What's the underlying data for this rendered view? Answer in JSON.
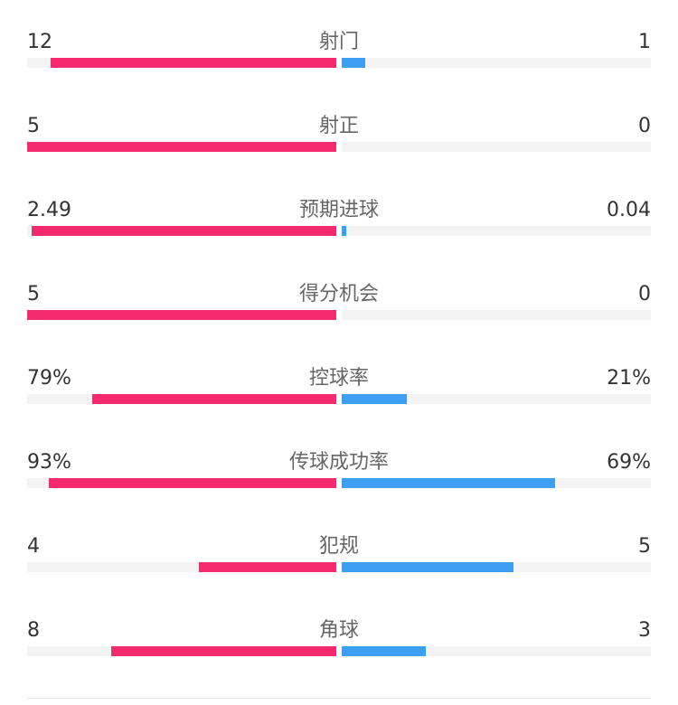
{
  "colors": {
    "home": "#f52a6e",
    "away": "#3d9ef2",
    "track": "#f3f3f3"
  },
  "stats": [
    {
      "label": "射门",
      "home": "12",
      "away": "1",
      "home_level": 0.923,
      "away_level": 0.077
    },
    {
      "label": "射正",
      "home": "5",
      "away": "0",
      "home_level": 1.0,
      "away_level": 0.0
    },
    {
      "label": "预期进球",
      "home": "2.49",
      "away": "0.04",
      "home_level": 0.984,
      "away_level": 0.016
    },
    {
      "label": "得分机会",
      "home": "5",
      "away": "0",
      "home_level": 1.0,
      "away_level": 0.0
    },
    {
      "label": "控球率",
      "home": "79%",
      "away": "21%",
      "home_level": 0.79,
      "away_level": 0.21
    },
    {
      "label": "传球成功率",
      "home": "93%",
      "away": "69%",
      "home_level": 0.93,
      "away_level": 0.69
    },
    {
      "label": "犯规",
      "home": "4",
      "away": "5",
      "home_level": 0.444,
      "away_level": 0.556
    },
    {
      "label": "角球",
      "home": "8",
      "away": "3",
      "home_level": 0.727,
      "away_level": 0.273
    }
  ]
}
